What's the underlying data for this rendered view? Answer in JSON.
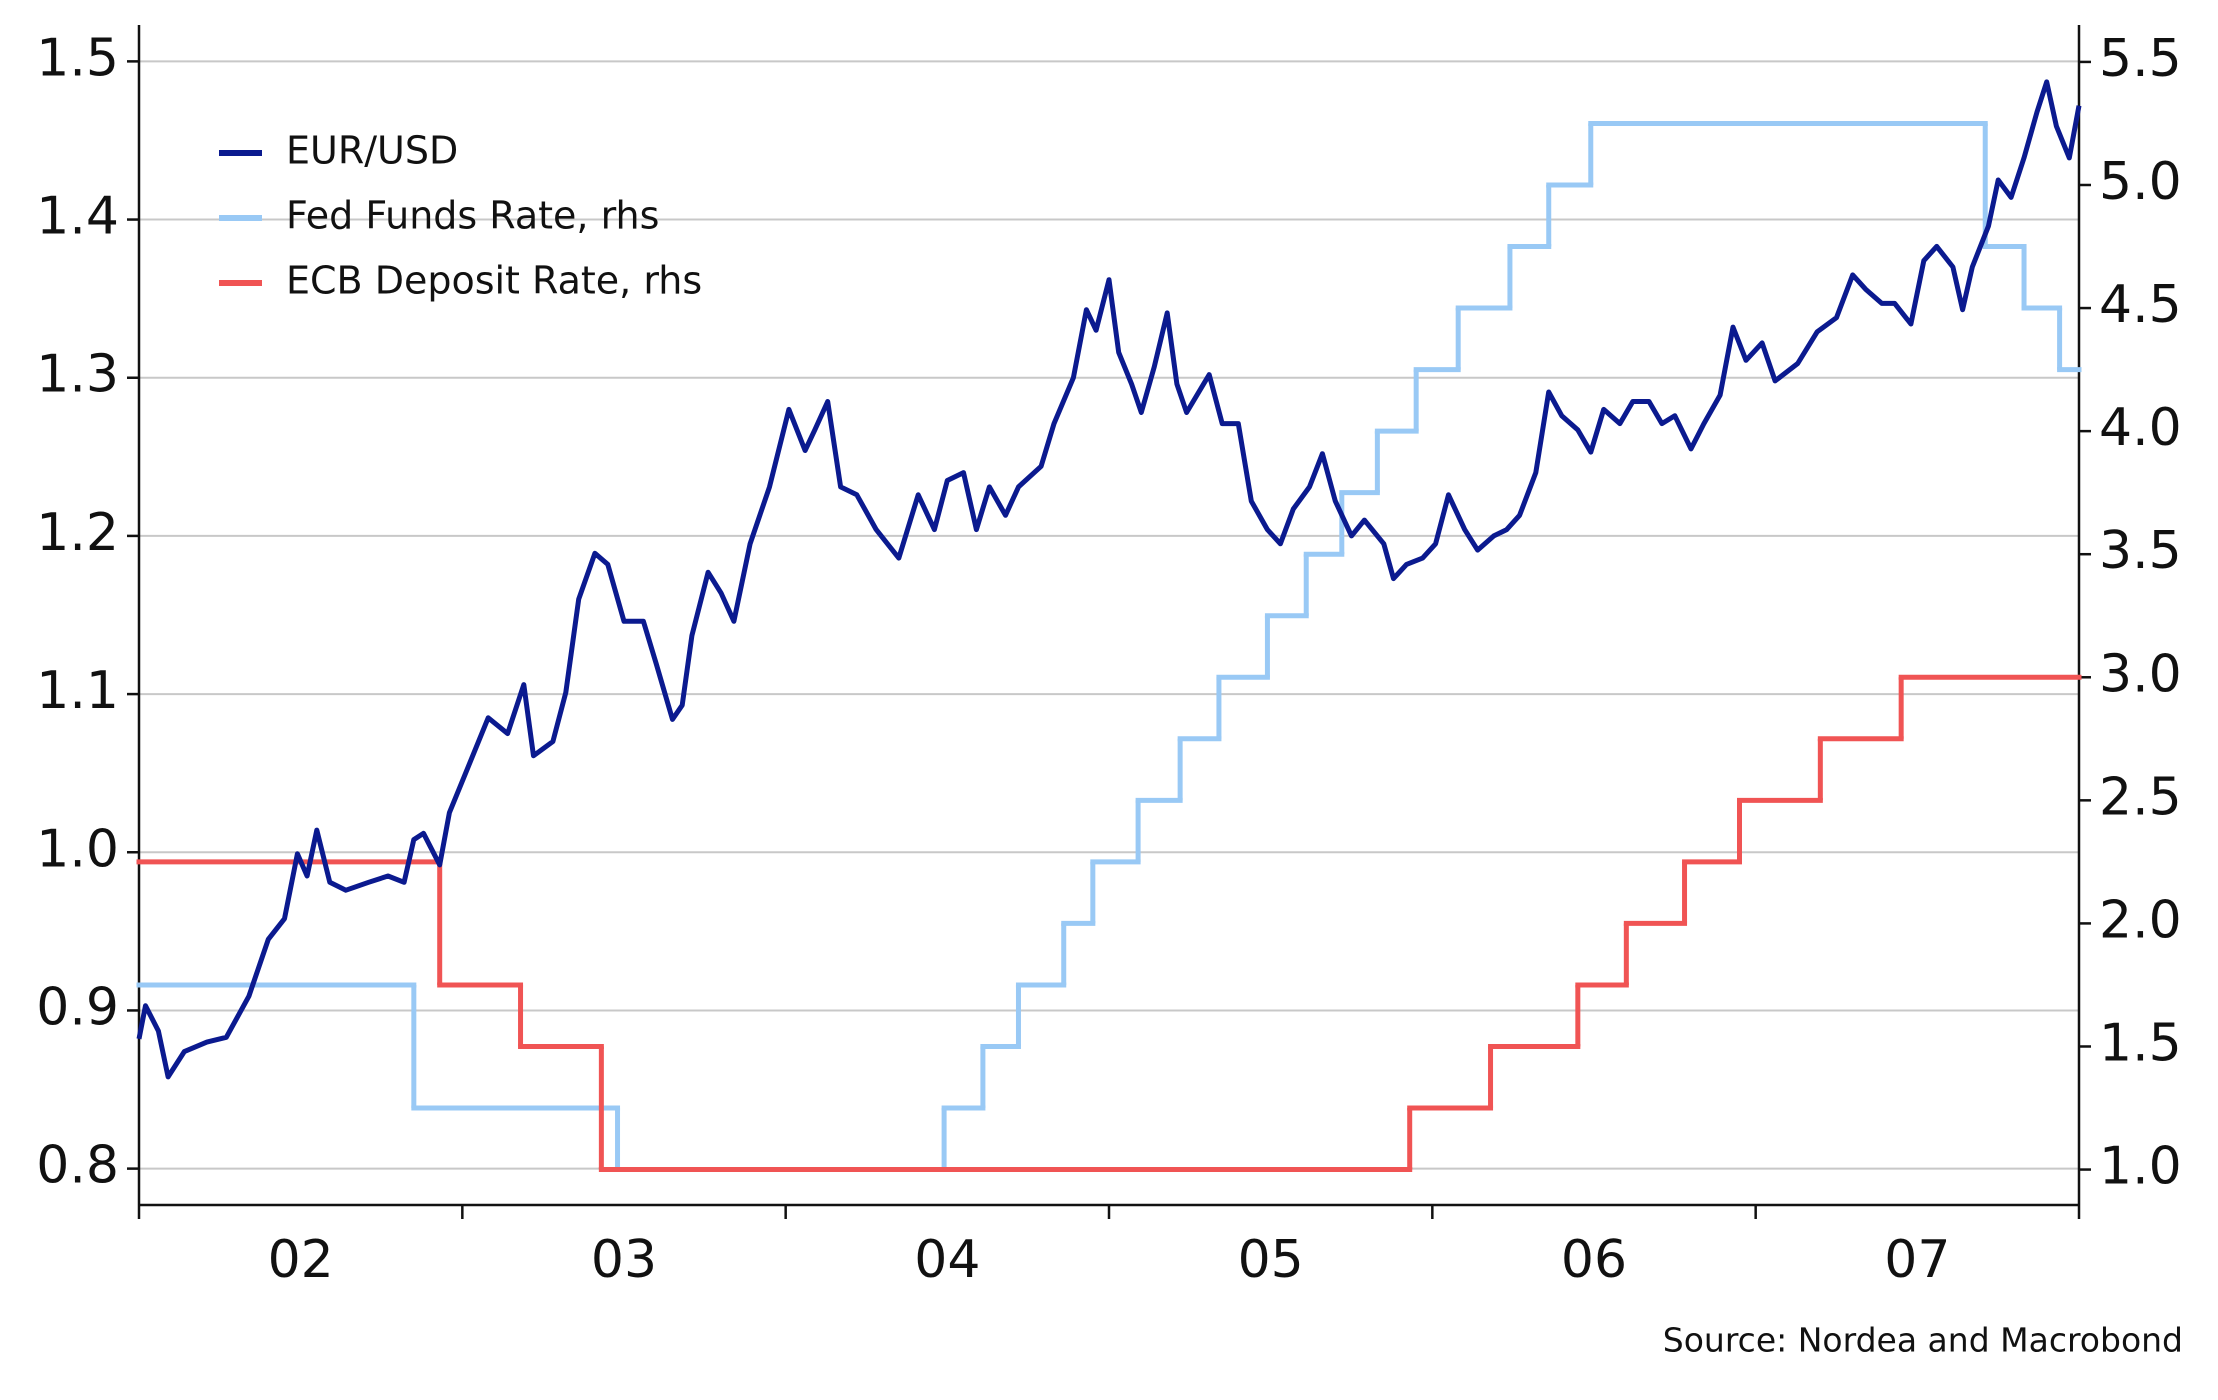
{
  "chart_data": {
    "type": "line",
    "source": "Source: Nordea and Macrobond",
    "xlim": [
      2,
      8
    ],
    "xticks": [
      {
        "value": 2.5,
        "label": "02"
      },
      {
        "value": 3.5,
        "label": "03"
      },
      {
        "value": 4.5,
        "label": "04"
      },
      {
        "value": 5.5,
        "label": "05"
      },
      {
        "value": 6.5,
        "label": "06"
      },
      {
        "value": 7.5,
        "label": "07"
      }
    ],
    "x_boundary_ticks": [
      2,
      3,
      4,
      5,
      6,
      7,
      8
    ],
    "ylim": [
      0.777,
      1.523
    ],
    "yticks": [
      0.8,
      0.9,
      {
        "value": 1,
        "label": "1.0"
      },
      1.1,
      1.2,
      1.3,
      1.4,
      1.5
    ],
    "y2lim": [
      0.856,
      5.65
    ],
    "y2ticks": [
      {
        "value": 1,
        "label": "1.0"
      },
      1.5,
      {
        "value": 2,
        "label": "2.0"
      },
      2.5,
      {
        "value": 3,
        "label": "3.0"
      },
      3.5,
      {
        "value": 4,
        "label": "4.0"
      },
      4.5,
      {
        "value": 5,
        "label": "5.0"
      },
      5.5
    ],
    "grid": true,
    "legend": "upper left",
    "series": [
      {
        "name": "EUR/USD",
        "color": "#0b1a8f",
        "axis": "y",
        "x": [
          2.0,
          2.02,
          2.06,
          2.09,
          2.14,
          2.21,
          2.27,
          2.34,
          2.4,
          2.45,
          2.49,
          2.52,
          2.55,
          2.59,
          2.64,
          2.71,
          2.77,
          2.82,
          2.85,
          2.88,
          2.93,
          2.96,
          3.01,
          3.08,
          3.14,
          3.19,
          3.22,
          3.28,
          3.32,
          3.36,
          3.41,
          3.45,
          3.5,
          3.56,
          3.6,
          3.65,
          3.68,
          3.71,
          3.76,
          3.8,
          3.84,
          3.89,
          3.95,
          4.01,
          4.06,
          4.09,
          4.13,
          4.17,
          4.22,
          4.28,
          4.35,
          4.41,
          4.46,
          4.5,
          4.55,
          4.59,
          4.63,
          4.68,
          4.72,
          4.79,
          4.83,
          4.89,
          4.93,
          4.96,
          5.0,
          5.03,
          5.07,
          5.1,
          5.14,
          5.18,
          5.21,
          5.24,
          5.31,
          5.35,
          5.4,
          5.44,
          5.49,
          5.53,
          5.57,
          5.62,
          5.66,
          5.7,
          5.75,
          5.79,
          5.85,
          5.88,
          5.92,
          5.97,
          6.01,
          6.05,
          6.1,
          6.14,
          6.19,
          6.23,
          6.27,
          6.32,
          6.36,
          6.4,
          6.45,
          6.49,
          6.53,
          6.58,
          6.62,
          6.67,
          6.71,
          6.75,
          6.8,
          6.84,
          6.89,
          6.93,
          6.97,
          7.02,
          7.06,
          7.13,
          7.19,
          7.25,
          7.3,
          7.34,
          7.39,
          7.43,
          7.48,
          7.52,
          7.56,
          7.61,
          7.64,
          7.67,
          7.72,
          7.75,
          7.79,
          7.83,
          7.87,
          7.9,
          7.93,
          7.97,
          8.0
        ],
        "values": [
          0.882,
          0.903,
          0.887,
          0.858,
          0.874,
          0.88,
          0.883,
          0.909,
          0.945,
          0.958,
          0.999,
          0.985,
          1.014,
          0.981,
          0.976,
          0.981,
          0.985,
          0.981,
          1.008,
          1.012,
          0.992,
          1.025,
          1.05,
          1.085,
          1.075,
          1.106,
          1.061,
          1.07,
          1.101,
          1.16,
          1.189,
          1.182,
          1.146,
          1.146,
          1.119,
          1.084,
          1.093,
          1.137,
          1.177,
          1.164,
          1.146,
          1.195,
          1.231,
          1.28,
          1.254,
          1.267,
          1.285,
          1.231,
          1.226,
          1.204,
          1.186,
          1.226,
          1.204,
          1.235,
          1.24,
          1.204,
          1.231,
          1.213,
          1.231,
          1.244,
          1.271,
          1.3,
          1.343,
          1.33,
          1.362,
          1.316,
          1.296,
          1.278,
          1.307,
          1.341,
          1.296,
          1.278,
          1.302,
          1.271,
          1.271,
          1.222,
          1.204,
          1.195,
          1.217,
          1.231,
          1.252,
          1.222,
          1.2,
          1.21,
          1.195,
          1.173,
          1.182,
          1.186,
          1.195,
          1.226,
          1.204,
          1.191,
          1.2,
          1.204,
          1.213,
          1.24,
          1.291,
          1.276,
          1.267,
          1.253,
          1.28,
          1.271,
          1.285,
          1.285,
          1.271,
          1.276,
          1.255,
          1.271,
          1.289,
          1.332,
          1.311,
          1.322,
          1.298,
          1.309,
          1.329,
          1.338,
          1.365,
          1.356,
          1.347,
          1.347,
          1.334,
          1.374,
          1.383,
          1.37,
          1.343,
          1.37,
          1.396,
          1.425,
          1.414,
          1.439,
          1.468,
          1.487,
          1.459,
          1.439,
          1.472
        ]
      },
      {
        "name": "Fed Funds Rate, rhs",
        "color": "#99c9f5",
        "axis": "y2",
        "step": true,
        "x": [
          2.0,
          2.85,
          3.48,
          4.49,
          4.61,
          4.72,
          4.86,
          4.95,
          5.09,
          5.22,
          5.34,
          5.49,
          5.61,
          5.72,
          5.83,
          5.95,
          6.08,
          6.24,
          6.36,
          6.49,
          7.71,
          7.83,
          7.94
        ],
        "values": [
          1.75,
          1.25,
          1.0,
          1.25,
          1.5,
          1.75,
          2.0,
          2.25,
          2.5,
          2.75,
          3.0,
          3.25,
          3.5,
          3.75,
          4.0,
          4.25,
          4.5,
          4.75,
          5.0,
          5.25,
          4.75,
          4.5,
          4.25
        ]
      },
      {
        "name": "ECB Deposit Rate, rhs",
        "color": "#f05454",
        "axis": "y2",
        "step": true,
        "x": [
          2.0,
          2.93,
          3.18,
          3.43,
          5.93,
          6.18,
          6.45,
          6.6,
          6.78,
          6.95,
          7.2,
          7.45
        ],
        "values": [
          2.25,
          1.75,
          1.5,
          1.0,
          1.25,
          1.5,
          1.75,
          2.0,
          2.25,
          2.5,
          2.75,
          3.0
        ]
      }
    ]
  }
}
